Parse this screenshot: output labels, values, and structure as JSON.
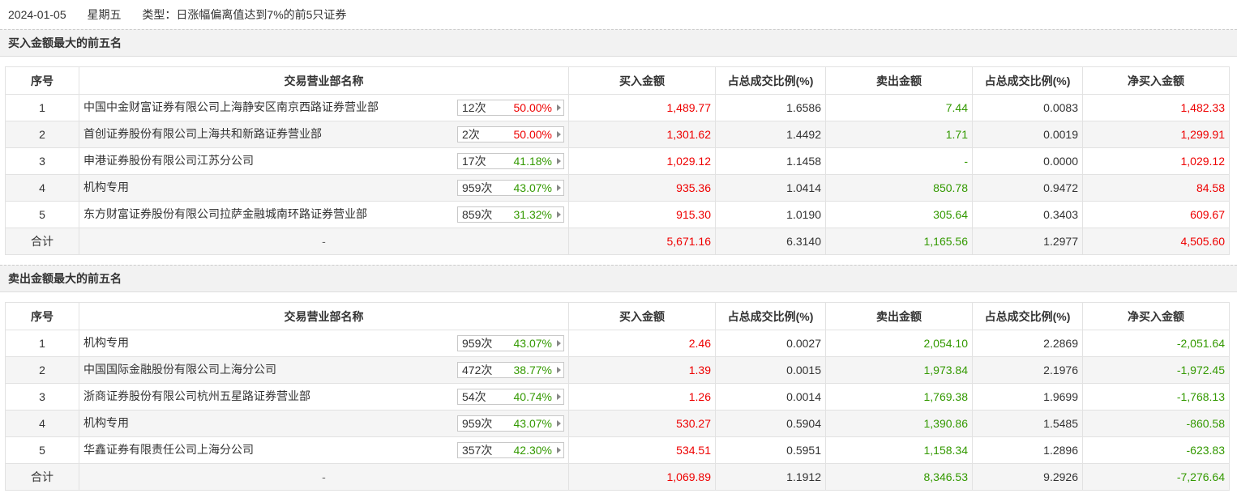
{
  "header": {
    "date": "2024-01-05",
    "weekday": "星期五",
    "type_text": "类型：日涨幅偏离值达到7%的前5只证券"
  },
  "columns": {
    "seq": "序号",
    "name": "交易营业部名称",
    "buy": "买入金额",
    "buy_ratio": "占总成交比例(%)",
    "sell": "卖出金额",
    "sell_ratio": "占总成交比例(%)",
    "net": "净买入金额"
  },
  "colors": {
    "up": "#ee0000",
    "down": "#339900",
    "header_bg": "#f2f2f2"
  },
  "buy_table": {
    "title": "买入金额最大的前五名",
    "rows": [
      {
        "seq": "1",
        "name": "中国中金财富证券有限公司上海静安区南京西路证券营业部",
        "count": "12次",
        "rate": "50.00%",
        "rate_color": "red",
        "buy": "1,489.77",
        "buy_ratio": "1.6586",
        "sell": "7.44",
        "sell_ratio": "0.0083",
        "net": "1,482.33",
        "net_color": "red"
      },
      {
        "seq": "2",
        "name": "首创证券股份有限公司上海共和新路证券营业部",
        "count": "2次",
        "rate": "50.00%",
        "rate_color": "red",
        "buy": "1,301.62",
        "buy_ratio": "1.4492",
        "sell": "1.71",
        "sell_ratio": "0.0019",
        "net": "1,299.91",
        "net_color": "red"
      },
      {
        "seq": "3",
        "name": "申港证券股份有限公司江苏分公司",
        "count": "17次",
        "rate": "41.18%",
        "rate_color": "green",
        "buy": "1,029.12",
        "buy_ratio": "1.1458",
        "sell": "-",
        "sell_ratio": "0.0000",
        "net": "1,029.12",
        "net_color": "red"
      },
      {
        "seq": "4",
        "name": "机构专用",
        "count": "959次",
        "rate": "43.07%",
        "rate_color": "green",
        "buy": "935.36",
        "buy_ratio": "1.0414",
        "sell": "850.78",
        "sell_ratio": "0.9472",
        "net": "84.58",
        "net_color": "red"
      },
      {
        "seq": "5",
        "name": "东方财富证券股份有限公司拉萨金融城南环路证券营业部",
        "count": "859次",
        "rate": "31.32%",
        "rate_color": "green",
        "buy": "915.30",
        "buy_ratio": "1.0190",
        "sell": "305.64",
        "sell_ratio": "0.3403",
        "net": "609.67",
        "net_color": "red"
      }
    ],
    "total": {
      "label": "合计",
      "name": "-",
      "buy": "5,671.16",
      "buy_ratio": "6.3140",
      "sell": "1,165.56",
      "sell_ratio": "1.2977",
      "net": "4,505.60",
      "net_color": "red"
    }
  },
  "sell_table": {
    "title": "卖出金额最大的前五名",
    "rows": [
      {
        "seq": "1",
        "name": "机构专用",
        "count": "959次",
        "rate": "43.07%",
        "rate_color": "green",
        "buy": "2.46",
        "buy_ratio": "0.0027",
        "sell": "2,054.10",
        "sell_ratio": "2.2869",
        "net": "-2,051.64",
        "net_color": "green"
      },
      {
        "seq": "2",
        "name": "中国国际金融股份有限公司上海分公司",
        "count": "472次",
        "rate": "38.77%",
        "rate_color": "green",
        "buy": "1.39",
        "buy_ratio": "0.0015",
        "sell": "1,973.84",
        "sell_ratio": "2.1976",
        "net": "-1,972.45",
        "net_color": "green"
      },
      {
        "seq": "3",
        "name": "浙商证券股份有限公司杭州五星路证券营业部",
        "count": "54次",
        "rate": "40.74%",
        "rate_color": "green",
        "buy": "1.26",
        "buy_ratio": "0.0014",
        "sell": "1,769.38",
        "sell_ratio": "1.9699",
        "net": "-1,768.13",
        "net_color": "green"
      },
      {
        "seq": "4",
        "name": "机构专用",
        "count": "959次",
        "rate": "43.07%",
        "rate_color": "green",
        "buy": "530.27",
        "buy_ratio": "0.5904",
        "sell": "1,390.86",
        "sell_ratio": "1.5485",
        "net": "-860.58",
        "net_color": "green"
      },
      {
        "seq": "5",
        "name": "华鑫证券有限责任公司上海分公司",
        "count": "357次",
        "rate": "42.30%",
        "rate_color": "green",
        "buy": "534.51",
        "buy_ratio": "0.5951",
        "sell": "1,158.34",
        "sell_ratio": "1.2896",
        "net": "-623.83",
        "net_color": "green"
      }
    ],
    "total": {
      "label": "合计",
      "name": "-",
      "buy": "1,069.89",
      "buy_ratio": "1.1912",
      "sell": "8,346.53",
      "sell_ratio": "9.2926",
      "net": "-7,276.64",
      "net_color": "green"
    }
  }
}
